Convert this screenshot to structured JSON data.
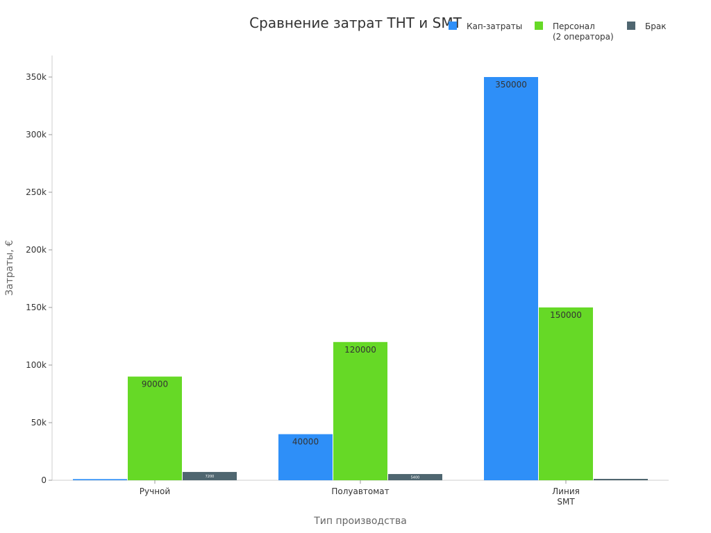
{
  "chart_data": {
    "type": "bar",
    "title": "Сравнение затрат THT и SMT",
    "xlabel": "Тип производства",
    "ylabel": "Затраты, €",
    "categories": [
      [
        "Ручной"
      ],
      [
        "Полуавтомат"
      ],
      [
        "Линия",
        "SMT"
      ]
    ],
    "series": [
      {
        "name": "Кап-затраты",
        "color": "#2e8ff8",
        "values": [
          1000,
          40000,
          350000
        ],
        "labels": [
          "",
          "40000",
          "350000"
        ]
      },
      {
        "name": [
          "Персонал",
          "(2 оператора)"
        ],
        "color": "#66d926",
        "values": [
          90000,
          120000,
          150000
        ],
        "labels": [
          "90000",
          "120000",
          "150000"
        ]
      },
      {
        "name": "Брак",
        "color": "#4f6670",
        "values": [
          7200,
          5400,
          1200
        ],
        "labels": [
          "7200",
          "5400",
          ""
        ]
      }
    ],
    "ylim": [
      0,
      360000
    ],
    "yticks": [
      0,
      50000,
      100000,
      150000,
      200000,
      250000,
      300000,
      350000
    ],
    "ytick_labels": [
      "0",
      "50k",
      "100k",
      "150k",
      "200k",
      "250k",
      "300k",
      "350k"
    ],
    "legend_position": "top-right",
    "grid": false
  }
}
